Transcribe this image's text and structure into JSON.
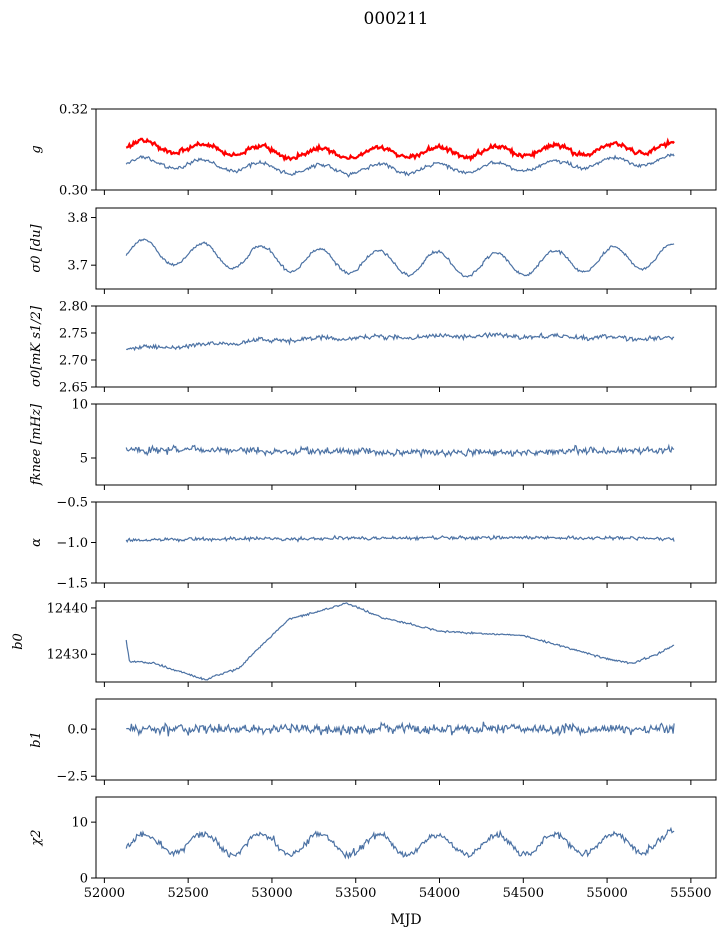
{
  "figure": {
    "title": "000211",
    "xlabel": "MJD"
  },
  "colors": {
    "series": "#4c72a4",
    "highlight": "#ff0000",
    "axis": "#000000"
  },
  "chart_data": {
    "type": "line",
    "title": "000211",
    "xlabel": "MJD",
    "xlim": [
      51950,
      55650
    ],
    "xticks": [
      "52000",
      "52500",
      "53000",
      "53500",
      "54000",
      "54500",
      "55000",
      "55500"
    ],
    "x_start": 52130,
    "x_end": 55400,
    "panels": [
      {
        "name": "g",
        "ylabel": "g",
        "ylim": [
          0.3,
          0.32
        ],
        "yticks": [
          0.3,
          0.32
        ],
        "ytick_labels": [
          "0.30",
          "0.32"
        ],
        "series": [
          {
            "color": "red",
            "mean": 0.309,
            "noise": 0.0009,
            "osc_amp": 0.0013,
            "osc_period": 350,
            "trend": [
              0.311,
              0.309,
              0.3095,
              0.3105
            ],
            "width": 2.2
          },
          {
            "color": "blue",
            "mean": 0.306,
            "noise": 0.0008,
            "osc_amp": 0.0012,
            "osc_period": 350,
            "trend": [
              0.307,
              0.305,
              0.3055,
              0.3075
            ],
            "width": 1.2
          }
        ]
      },
      {
        "name": "sigma0-du",
        "ylabel": "σ0 [du]",
        "ylim": [
          3.65,
          3.82
        ],
        "yticks": [
          3.7,
          3.8
        ],
        "ytick_labels": [
          "3.7",
          "3.8"
        ],
        "series": [
          {
            "color": "blue",
            "osc_amp": 0.025,
            "osc_period": 350,
            "noise": 0.005,
            "trend": [
              3.73,
              3.71,
              3.7,
              3.72
            ],
            "width": 1.2
          }
        ]
      },
      {
        "name": "sigma0-mk",
        "ylabel": "σ0[mK s1/2]",
        "ylim": [
          2.65,
          2.8
        ],
        "yticks": [
          2.65,
          2.7,
          2.75,
          2.8
        ],
        "ytick_labels": [
          "2.65",
          "2.70",
          "2.75",
          "2.80"
        ],
        "series": [
          {
            "color": "blue",
            "osc_amp": 0.002,
            "osc_period": 350,
            "noise": 0.007,
            "trend": [
              2.72,
              2.74,
              2.745,
              2.74
            ],
            "width": 1.2
          }
        ]
      },
      {
        "name": "fknee",
        "ylabel": "fknee [mHz]",
        "ylim": [
          2.5,
          10
        ],
        "yticks": [
          5,
          10
        ],
        "ytick_labels": [
          "5",
          "10"
        ],
        "series": [
          {
            "color": "blue",
            "osc_amp": 0.0,
            "osc_period": 350,
            "noise": 0.55,
            "trend": [
              5.8,
              5.6,
              5.5,
              5.8
            ],
            "width": 1.2
          }
        ]
      },
      {
        "name": "alpha",
        "ylabel": "α",
        "ylim": [
          -1.5,
          -0.5
        ],
        "yticks": [
          -1.5,
          -1.0,
          -0.5
        ],
        "ytick_labels": [
          "−1.5",
          "−1.0",
          "−0.5"
        ],
        "series": [
          {
            "color": "blue",
            "osc_amp": 0.0,
            "osc_period": 350,
            "noise": 0.035,
            "trend": [
              -0.97,
              -0.95,
              -0.94,
              -0.95
            ],
            "width": 1.2
          }
        ]
      },
      {
        "name": "b0",
        "ylabel": "b0",
        "ylim": [
          12424,
          12441.5
        ],
        "yticks": [
          12430,
          12440
        ],
        "ytick_labels": [
          "12430",
          "12440"
        ],
        "series": [
          {
            "color": "blue",
            "osc_amp": 0.0,
            "osc_period": 350,
            "noise": 0.35,
            "keypoints": [
              [
                52130,
                12433
              ],
              [
                52150,
                12428.5
              ],
              [
                52300,
                12428
              ],
              [
                52600,
                12424.5
              ],
              [
                52800,
                12427
              ],
              [
                53100,
                12437.5
              ],
              [
                53450,
                12441
              ],
              [
                53650,
                12438
              ],
              [
                54000,
                12435
              ],
              [
                54500,
                12434
              ],
              [
                55000,
                12429
              ],
              [
                55150,
                12428
              ],
              [
                55300,
                12430
              ],
              [
                55400,
                12432
              ]
            ],
            "width": 1.2
          }
        ]
      },
      {
        "name": "b1",
        "ylabel": "b1",
        "ylim": [
          -2.7,
          1.6
        ],
        "yticks": [
          -2.5,
          0.0
        ],
        "ytick_labels": [
          "−2.5",
          "0.0"
        ],
        "series": [
          {
            "color": "blue",
            "osc_amp": 0.0,
            "osc_period": 350,
            "noise": 0.42,
            "trend": [
              0.0,
              0.0,
              0.0,
              0.0
            ],
            "width": 1.2
          }
        ]
      },
      {
        "name": "chi2",
        "ylabel": "χ2",
        "ylim": [
          0,
          14.5
        ],
        "yticks": [
          0,
          10
        ],
        "ytick_labels": [
          "0",
          "10"
        ],
        "series": [
          {
            "color": "blue",
            "osc_amp": 1.8,
            "osc_period": 350,
            "noise": 1.0,
            "trend": [
              6.2,
              6.0,
              5.9,
              6.4
            ],
            "width": 1.2
          }
        ]
      }
    ]
  }
}
